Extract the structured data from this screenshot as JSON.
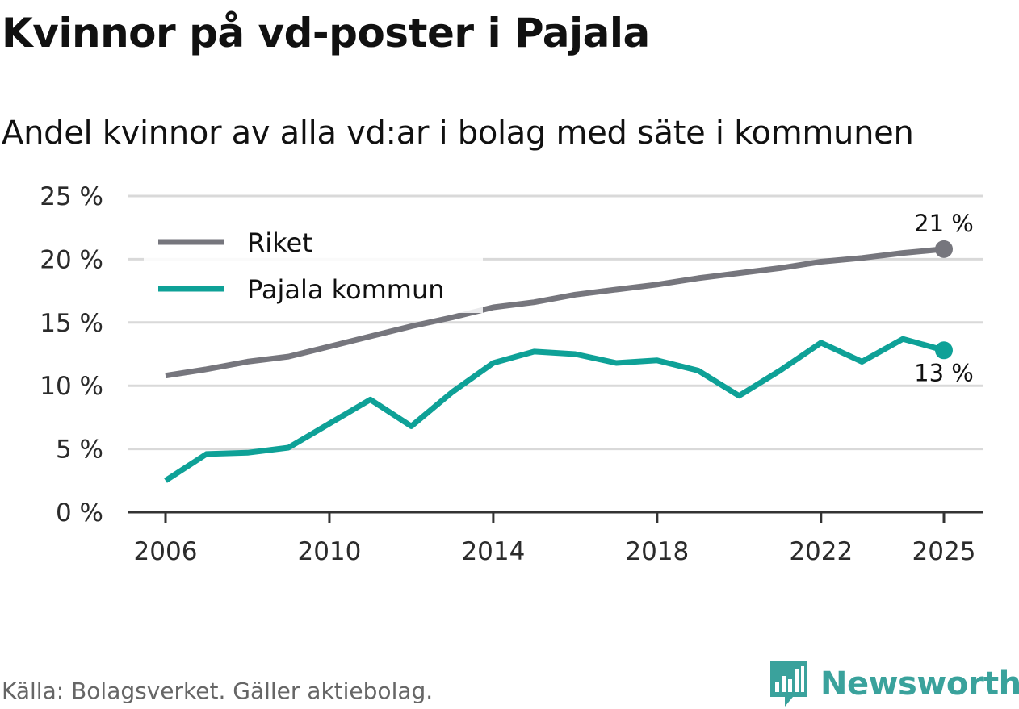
{
  "header": {
    "title": "Kvinnor på vd-poster i Pajala",
    "subtitle": "Andel kvinnor av alla vd:ar i bolag med säte i kommunen"
  },
  "footer": {
    "source": "Källa: Bolagsverket. Gäller aktiebolag.",
    "brand": "Newsworthy"
  },
  "colors": {
    "riket": "#76767d",
    "pajala": "#0ea197",
    "grid": "#d9d9d9",
    "axis": "#333333",
    "brand": "#3aa29c"
  },
  "chart_data": {
    "type": "line",
    "title": "Kvinnor på vd-poster i Pajala",
    "subtitle": "Andel kvinnor av alla vd:ar i bolag med säte i kommunen",
    "xlabel": "",
    "ylabel": "",
    "x": [
      2006,
      2007,
      2008,
      2009,
      2010,
      2011,
      2012,
      2013,
      2014,
      2015,
      2016,
      2017,
      2018,
      2019,
      2020,
      2021,
      2022,
      2023,
      2024,
      2025
    ],
    "xticks": [
      2006,
      2010,
      2014,
      2018,
      2022,
      2025
    ],
    "xtick_labels": [
      "2006",
      "2010",
      "2014",
      "2018",
      "2022",
      "2025"
    ],
    "ylim": [
      0,
      25
    ],
    "yticks": [
      0,
      5,
      10,
      15,
      20,
      25
    ],
    "ytick_labels": [
      "0 %",
      "5 %",
      "10 %",
      "15 %",
      "20 %",
      "25 %"
    ],
    "grid": true,
    "legend_position": "top-left",
    "series": [
      {
        "name": "Riket",
        "color": "#76767d",
        "values": [
          10.8,
          11.3,
          11.9,
          12.3,
          13.1,
          13.9,
          14.7,
          15.4,
          16.2,
          16.6,
          17.2,
          17.6,
          18.0,
          18.5,
          18.9,
          19.3,
          19.8,
          20.1,
          20.5,
          20.8
        ],
        "end_label": "21 %",
        "end_label_position": "above"
      },
      {
        "name": "Pajala kommun",
        "color": "#0ea197",
        "values": [
          2.5,
          4.6,
          4.7,
          5.1,
          7.0,
          8.9,
          6.8,
          9.5,
          11.8,
          12.7,
          12.5,
          11.8,
          12.0,
          11.2,
          9.2,
          11.2,
          13.4,
          11.9,
          13.7,
          12.8
        ],
        "end_label": "13 %",
        "end_label_position": "below"
      }
    ]
  }
}
